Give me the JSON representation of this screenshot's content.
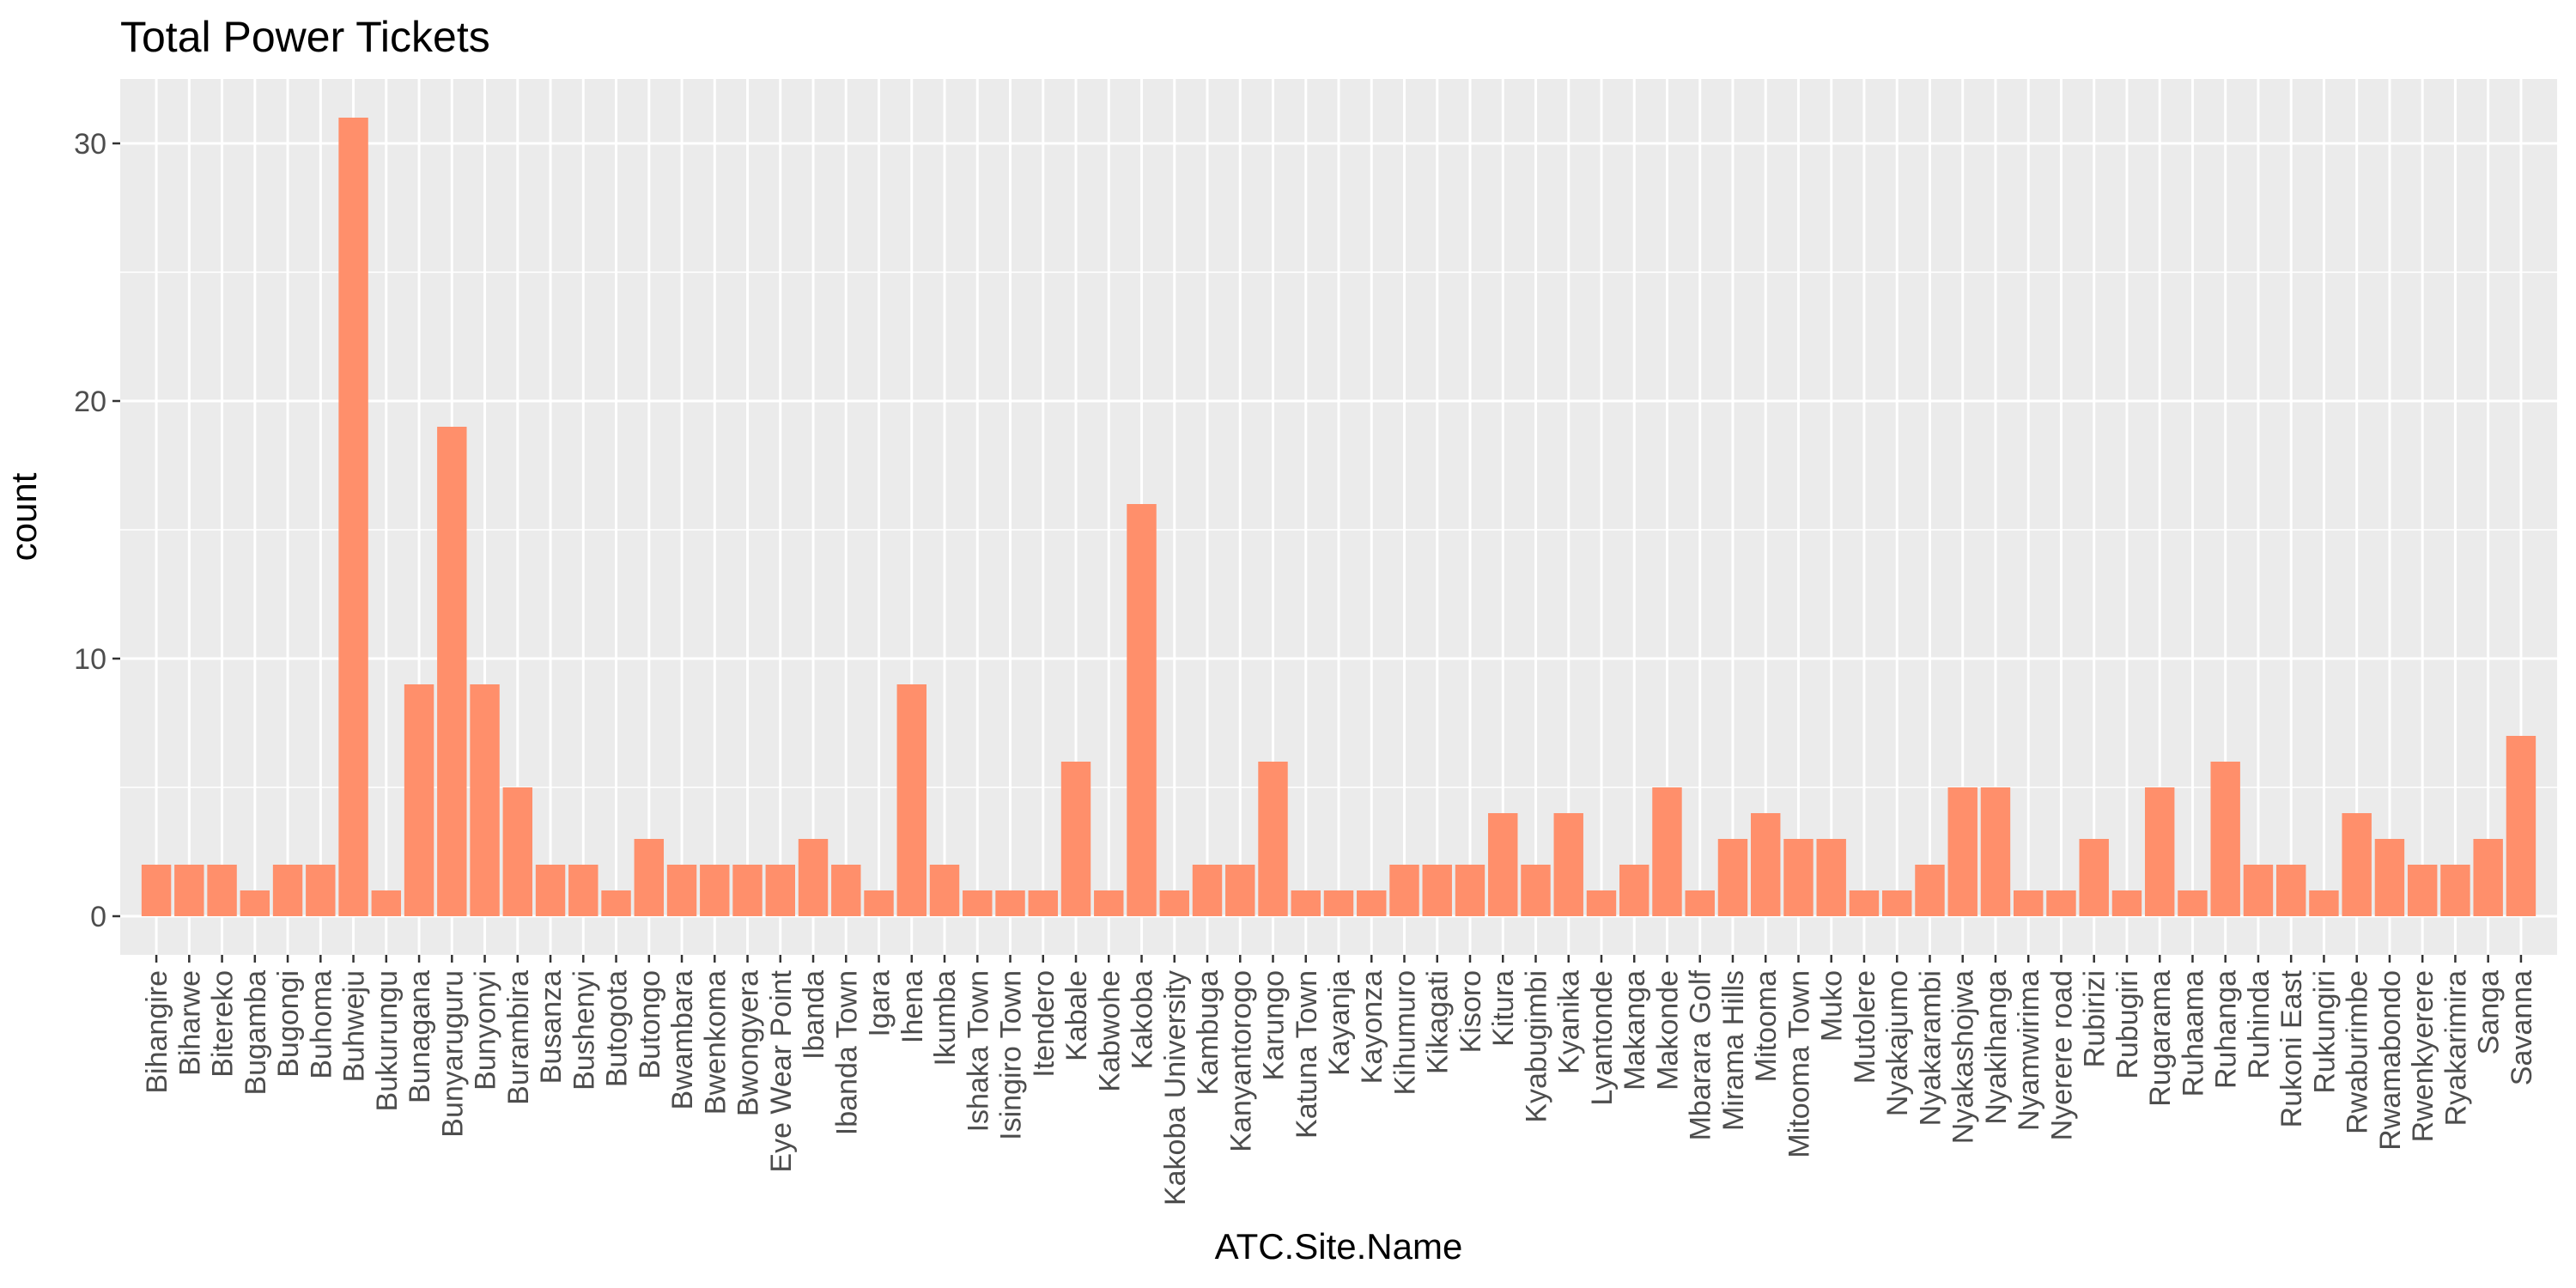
{
  "chart_data": {
    "type": "bar",
    "title": "Total Power Tickets",
    "xlabel": "ATC.Site.Name",
    "ylabel": "count",
    "ylim": [
      -1.5,
      32.5
    ],
    "yticks": [
      0,
      10,
      20,
      30
    ],
    "grid": true,
    "legend": "none",
    "colors": {
      "bar": "#ff8f6b",
      "panel": "#ebebeb",
      "grid": "#ffffff",
      "tick_text": "#4d4d4d"
    },
    "categories": [
      "Bihangire",
      "Biharwe",
      "Bitereko",
      "Bugamba",
      "Bugongi",
      "Buhoma",
      "Buhweju",
      "Bukurungu",
      "Bunagana",
      "Bunyaruguru",
      "Bunyonyi",
      "Burambira",
      "Busanza",
      "Bushenyi",
      "Butogota",
      "Butongo",
      "Bwambara",
      "Bwenkoma",
      "Bwongyera",
      "Eye Wear Point",
      "Ibanda",
      "Ibanda Town",
      "Igara",
      "Ihena",
      "Ikumba",
      "Ishaka Town",
      "Isingiro Town",
      "Itendero",
      "Kabale",
      "Kabwohe",
      "Kakoba",
      "Kakoba University",
      "Kambuga",
      "Kanyantorogo",
      "Karungo",
      "Katuna Town",
      "Kayanja",
      "Kayonza",
      "Kihumuro",
      "Kikagati",
      "Kisoro",
      "Kitura",
      "Kyabugimbi",
      "Kyanika",
      "Lyantonde",
      "Makanga",
      "Makonde",
      "Mbarara Golf",
      "Mirama Hills",
      "Mitooma",
      "Mitooma Town",
      "Muko",
      "Mutolere",
      "Nyakajumo",
      "Nyakarambi",
      "Nyakashojwa",
      "Nyakihanga",
      "Nyamwirima",
      "Nyerere road",
      "Rubirizi",
      "Rubugiri",
      "Rugarama",
      "Ruhaama",
      "Ruhanga",
      "Ruhinda",
      "Rukoni East",
      "Rukungiri",
      "Rwaburimbe",
      "Rwamabondo",
      "Rwenkyerere",
      "Ryakarimira",
      "Sanga",
      "Savanna"
    ],
    "values": [
      2,
      2,
      2,
      1,
      2,
      2,
      31,
      1,
      9,
      19,
      9,
      5,
      2,
      2,
      1,
      3,
      2,
      2,
      2,
      2,
      3,
      2,
      1,
      9,
      2,
      1,
      1,
      1,
      6,
      1,
      16,
      1,
      2,
      2,
      6,
      1,
      1,
      1,
      2,
      2,
      2,
      4,
      2,
      4,
      1,
      2,
      5,
      1,
      3,
      4,
      3,
      3,
      1,
      1,
      2,
      5,
      5,
      1,
      1,
      3,
      1,
      5,
      1,
      6,
      2,
      2,
      1,
      4,
      3,
      2,
      2,
      3,
      7
    ]
  }
}
